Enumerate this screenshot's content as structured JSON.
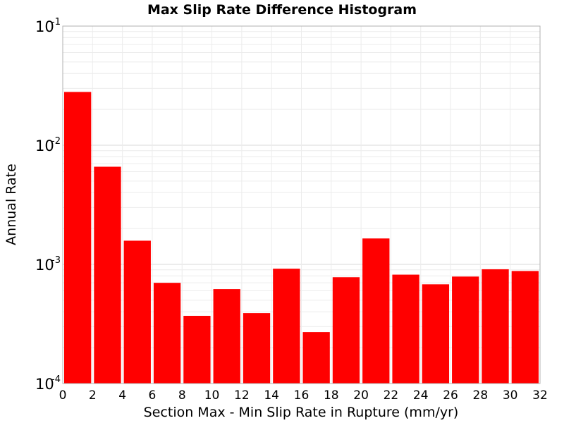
{
  "chart_data": {
    "type": "bar",
    "title": "Max Slip Rate Difference Histogram",
    "xlabel": "Section Max - Min Slip Rate in Rupture (mm/yr)",
    "ylabel": "Annual Rate",
    "xlim": [
      0,
      32
    ],
    "ylim": [
      0.0001,
      0.1
    ],
    "yscale": "log",
    "grid": true,
    "bar_color": "#ff0000",
    "xticks": [
      "0",
      "2",
      "4",
      "6",
      "8",
      "10",
      "12",
      "14",
      "16",
      "18",
      "20",
      "22",
      "24",
      "26",
      "28",
      "30",
      "32"
    ],
    "yticks": [
      {
        "base": "10",
        "exp": "-4"
      },
      {
        "base": "10",
        "exp": "-3"
      },
      {
        "base": "10",
        "exp": "-2"
      },
      {
        "base": "10",
        "exp": "-1"
      }
    ],
    "bin_width": 2,
    "bin_starts": [
      0,
      2,
      4,
      6,
      8,
      10,
      12,
      14,
      16,
      18,
      20,
      22,
      24,
      26,
      28,
      30
    ],
    "values": [
      0.028,
      0.0066,
      0.00158,
      0.0007,
      0.00037,
      0.00062,
      0.00039,
      0.00092,
      0.00027,
      0.00078,
      0.00165,
      0.00082,
      0.00068,
      0.00079,
      0.00091,
      0.00088
    ]
  }
}
